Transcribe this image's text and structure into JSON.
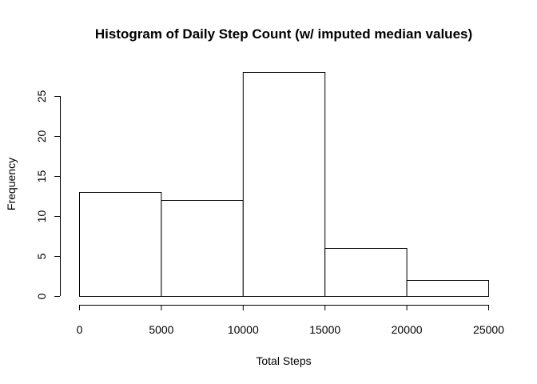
{
  "chart_data": {
    "type": "bar",
    "title": "Histogram of Daily Step Count (w/ imputed median values)",
    "xlabel": "Total Steps",
    "ylabel": "Frequency",
    "bins": [
      {
        "from": 0,
        "to": 5000,
        "count": 13
      },
      {
        "from": 5000,
        "to": 10000,
        "count": 12
      },
      {
        "from": 10000,
        "to": 15000,
        "count": 28
      },
      {
        "from": 15000,
        "to": 20000,
        "count": 6
      },
      {
        "from": 20000,
        "to": 25000,
        "count": 2
      }
    ],
    "xlim": [
      0,
      25000
    ],
    "ylim": [
      0,
      28
    ],
    "x_ticks": [
      0,
      5000,
      10000,
      15000,
      20000,
      25000
    ],
    "x_tick_labels": [
      "0",
      "5000",
      "10000",
      "15000",
      "20000",
      "25000"
    ],
    "y_ticks": [
      0,
      5,
      10,
      15,
      20,
      25
    ],
    "y_tick_labels": [
      "0",
      "5",
      "10",
      "15",
      "20",
      "25"
    ],
    "grid": false,
    "bar_fill": "#ffffff",
    "bar_stroke": "#000000"
  }
}
